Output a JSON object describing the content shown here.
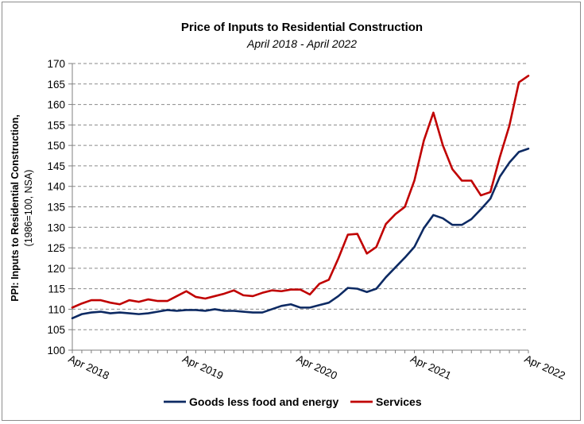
{
  "chart_data": {
    "type": "line",
    "title": "Price of Inputs to Residential Construction",
    "subtitle": "April 2018 - April 2022",
    "ylabel": "PPI: Inputs to Residential Construction,",
    "ylabel_sub": "(1986=100, NSA)",
    "xlabel": "",
    "ylim": [
      100,
      170
    ],
    "yticks": [
      100,
      105,
      110,
      115,
      120,
      125,
      130,
      135,
      140,
      145,
      150,
      155,
      160,
      165,
      170
    ],
    "grid": true,
    "legend_position": "bottom",
    "x_tick_labels": [
      "Apr 2018",
      "Apr 2019",
      "Apr 2020",
      "Apr 2021",
      "Apr 2022"
    ],
    "x": [
      "2018-04",
      "2018-05",
      "2018-06",
      "2018-07",
      "2018-08",
      "2018-09",
      "2018-10",
      "2018-11",
      "2018-12",
      "2019-01",
      "2019-02",
      "2019-03",
      "2019-04",
      "2019-05",
      "2019-06",
      "2019-07",
      "2019-08",
      "2019-09",
      "2019-10",
      "2019-11",
      "2019-12",
      "2020-01",
      "2020-02",
      "2020-03",
      "2020-04",
      "2020-05",
      "2020-06",
      "2020-07",
      "2020-08",
      "2020-09",
      "2020-10",
      "2020-11",
      "2020-12",
      "2021-01",
      "2021-02",
      "2021-03",
      "2021-04",
      "2021-05",
      "2021-06",
      "2021-07",
      "2021-08",
      "2021-09",
      "2021-10",
      "2021-11",
      "2021-12",
      "2022-01",
      "2022-02",
      "2022-03",
      "2022-04"
    ],
    "series": [
      {
        "name": "Goods less food and energy",
        "color": "#0d2a63",
        "values": [
          107.8,
          108.8,
          109.2,
          109.4,
          109.0,
          109.2,
          109.0,
          108.8,
          109.0,
          109.4,
          109.8,
          109.6,
          109.8,
          109.8,
          109.6,
          110.0,
          109.6,
          109.6,
          109.4,
          109.2,
          109.2,
          110.0,
          110.8,
          111.2,
          110.4,
          110.4,
          111.0,
          111.6,
          113.2,
          115.2,
          115.0,
          114.2,
          115.0,
          117.8,
          120.2,
          122.6,
          125.2,
          129.8,
          133.0,
          132.2,
          130.6,
          130.6,
          132.0,
          134.4,
          137.0,
          142.4,
          145.8,
          148.4,
          149.2
        ]
      },
      {
        "name": "Services",
        "color": "#c00000",
        "values": [
          110.4,
          111.4,
          112.2,
          112.2,
          111.6,
          111.2,
          112.2,
          111.8,
          112.4,
          112.0,
          112.0,
          113.2,
          114.4,
          113.0,
          112.6,
          113.2,
          113.8,
          114.6,
          113.4,
          113.2,
          114.0,
          114.6,
          114.4,
          114.8,
          114.8,
          113.6,
          116.2,
          117.2,
          122.4,
          128.2,
          128.4,
          123.6,
          125.2,
          130.8,
          133.2,
          135.0,
          141.4,
          151.2,
          158.0,
          150.0,
          144.2,
          141.4,
          141.4,
          137.8,
          138.6,
          147.2,
          154.8,
          165.4,
          167.0
        ]
      }
    ]
  }
}
